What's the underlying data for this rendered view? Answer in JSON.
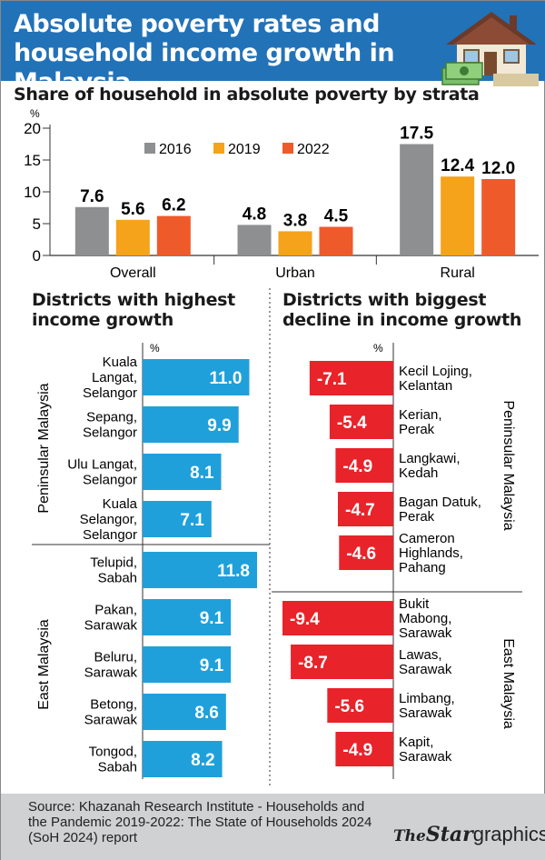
{
  "header": {
    "title": "Absolute poverty rates and household income growth in Malaysia"
  },
  "colors": {
    "header_bg": "#2272b8",
    "series_2016": "#8e8f90",
    "series_2019": "#f5a31a",
    "series_2022": "#ef5a2b",
    "growth_bar": "#1fa0db",
    "decline_bar": "#e8232a"
  },
  "chart_data": [
    {
      "type": "bar",
      "title": "Share of household in absolute poverty by strata",
      "ylabel": "%",
      "ylim": [
        0,
        20
      ],
      "yticks": [
        "0",
        "5",
        "10",
        "15",
        "20"
      ],
      "categories": [
        "Overall",
        "Urban",
        "Rural"
      ],
      "series": [
        {
          "name": "2016",
          "values": [
            7.6,
            4.8,
            17.5
          ],
          "labels": [
            "7.6",
            "4.8",
            "17.5"
          ]
        },
        {
          "name": "2019",
          "values": [
            5.6,
            3.8,
            12.4
          ],
          "labels": [
            "5.6",
            "3.8",
            "12.4"
          ]
        },
        {
          "name": "2022",
          "values": [
            6.2,
            4.5,
            12.0
          ],
          "labels": [
            "6.2",
            "4.5",
            "12.0"
          ]
        }
      ],
      "legend": "top-center",
      "grid": false
    },
    {
      "type": "bar",
      "orientation": "horizontal",
      "title": "Districts with highest income growth",
      "unit": "%",
      "groups": [
        {
          "name": "Peninsular Malaysia",
          "items": [
            {
              "district": [
                "Kuala",
                "Langat,",
                "Selangor"
              ],
              "value": 11.0,
              "label": "11.0"
            },
            {
              "district": [
                "Sepang,",
                "Selangor"
              ],
              "value": 9.9,
              "label": "9.9"
            },
            {
              "district": [
                "Ulu Langat,",
                "Selangor"
              ],
              "value": 8.1,
              "label": "8.1"
            },
            {
              "district": [
                "Kuala",
                "Selangor,",
                "Selangor"
              ],
              "value": 7.1,
              "label": "7.1"
            }
          ]
        },
        {
          "name": "East Malaysia",
          "items": [
            {
              "district": [
                "Telupid,",
                "Sabah"
              ],
              "value": 11.8,
              "label": "11.8"
            },
            {
              "district": [
                "Pakan,",
                "Sarawak"
              ],
              "value": 9.1,
              "label": "9.1"
            },
            {
              "district": [
                "Beluru,",
                "Sarawak"
              ],
              "value": 9.1,
              "label": "9.1"
            },
            {
              "district": [
                "Betong,",
                "Sarawak"
              ],
              "value": 8.6,
              "label": "8.6"
            },
            {
              "district": [
                "Tongod,",
                "Sabah"
              ],
              "value": 8.2,
              "label": "8.2"
            }
          ]
        }
      ]
    },
    {
      "type": "bar",
      "orientation": "horizontal",
      "title": "Districts with biggest decline in income growth",
      "unit": "%",
      "groups": [
        {
          "name": "Peninsular Malaysia",
          "items": [
            {
              "district": [
                "Kecil Lojing,",
                "Kelantan"
              ],
              "value": -7.1,
              "label": "-7.1"
            },
            {
              "district": [
                "Kerian,",
                "Perak"
              ],
              "value": -5.4,
              "label": "-5.4"
            },
            {
              "district": [
                "Langkawi,",
                "Kedah"
              ],
              "value": -4.9,
              "label": "-4.9"
            },
            {
              "district": [
                "Bagan Datuk,",
                "Perak"
              ],
              "value": -4.7,
              "label": "-4.7"
            },
            {
              "district": [
                "Cameron",
                "Highlands,",
                "Pahang"
              ],
              "value": -4.6,
              "label": "-4.6"
            }
          ]
        },
        {
          "name": "East Malaysia",
          "items": [
            {
              "district": [
                "Bukit",
                "Mabong,",
                "Sarawak"
              ],
              "value": -9.4,
              "label": "-9.4"
            },
            {
              "district": [
                "Lawas,",
                "Sarawak"
              ],
              "value": -8.7,
              "label": "-8.7"
            },
            {
              "district": [
                "Limbang,",
                "Sarawak"
              ],
              "value": -5.6,
              "label": "-5.6"
            },
            {
              "district": [
                "Kapit,",
                "Sarawak"
              ],
              "value": -4.9,
              "label": "-4.9"
            }
          ]
        }
      ]
    }
  ],
  "footer": {
    "source": "Source: Khazanah Research Institute - Households and the Pandemic 2019-2022: The State of Households 2024 (SoH 2024) report",
    "logo_the": "The",
    "logo_star": "Star",
    "logo_graphics": "graphics"
  }
}
